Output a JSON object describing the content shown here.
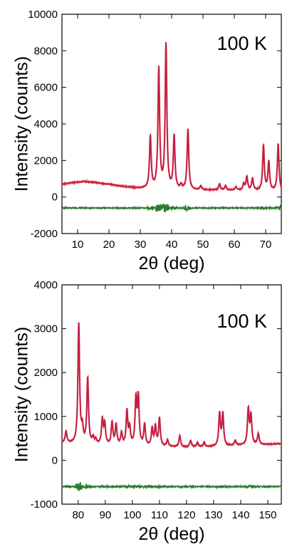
{
  "colors": {
    "observed": "#d91a2a",
    "calculated": "#3a36c9",
    "difference": "#2a7a2a",
    "axis": "#000000"
  },
  "chart_data": [
    {
      "type": "line",
      "annotation": "100 K",
      "xlabel": "2θ (deg)",
      "ylabel": "Intensity (counts)",
      "xlim": [
        5,
        75
      ],
      "ylim": [
        -2000,
        10000
      ],
      "xticks": [
        10,
        20,
        30,
        40,
        50,
        60,
        70
      ],
      "yticks": [
        -2000,
        0,
        2000,
        4000,
        6000,
        8000,
        10000
      ],
      "xtick_labels": [
        "10",
        "20",
        "30",
        "40",
        "50",
        "60",
        "70"
      ],
      "ytick_labels": [
        "-2000",
        "0",
        "2000",
        "4000",
        "6000",
        "8000",
        "10000"
      ],
      "background": [
        [
          5,
          700
        ],
        [
          8,
          780
        ],
        [
          12,
          850
        ],
        [
          16,
          780
        ],
        [
          20,
          700
        ],
        [
          25,
          560
        ],
        [
          30,
          470
        ],
        [
          35,
          430
        ],
        [
          40,
          400
        ],
        [
          50,
          380
        ],
        [
          60,
          370
        ],
        [
          70,
          330
        ],
        [
          75,
          300
        ]
      ],
      "peaks": [
        {
          "x": 33.2,
          "y": 3300
        },
        {
          "x": 35.9,
          "y": 7000
        },
        {
          "x": 38.2,
          "y": 8300
        },
        {
          "x": 40.8,
          "y": 3300
        },
        {
          "x": 43.0,
          "y": 600
        },
        {
          "x": 45.2,
          "y": 3700
        },
        {
          "x": 49.3,
          "y": 600
        },
        {
          "x": 55.3,
          "y": 700
        },
        {
          "x": 57.2,
          "y": 600
        },
        {
          "x": 60.5,
          "y": 550
        },
        {
          "x": 63.0,
          "y": 700
        },
        {
          "x": 64.0,
          "y": 1100
        },
        {
          "x": 65.8,
          "y": 1000
        },
        {
          "x": 69.3,
          "y": 2800
        },
        {
          "x": 71.0,
          "y": 1900
        },
        {
          "x": 74.0,
          "y": 2900
        }
      ],
      "difference_offset": -600,
      "series": [
        {
          "name": "",
          "role": "observed"
        },
        {
          "name": "",
          "role": "calculated"
        },
        {
          "name": "",
          "role": "difference"
        }
      ]
    },
    {
      "type": "line",
      "annotation": "100 K",
      "xlabel": "2θ (deg)",
      "ylabel": "Intensity (counts)",
      "xlim": [
        74,
        155
      ],
      "ylim": [
        -1000,
        4000
      ],
      "xticks": [
        80,
        90,
        100,
        110,
        120,
        130,
        140,
        150
      ],
      "yticks": [
        -1000,
        0,
        1000,
        2000,
        3000,
        4000
      ],
      "xtick_labels": [
        "80",
        "90",
        "100",
        "110",
        "120",
        "130",
        "140",
        "150"
      ],
      "ytick_labels": [
        "-1000",
        "0",
        "1000",
        "2000",
        "3000",
        "4000"
      ],
      "background": [
        [
          74,
          400
        ],
        [
          80,
          370
        ],
        [
          90,
          340
        ],
        [
          100,
          320
        ],
        [
          110,
          310
        ],
        [
          120,
          300
        ],
        [
          130,
          310
        ],
        [
          140,
          340
        ],
        [
          150,
          360
        ],
        [
          155,
          380
        ]
      ],
      "peaks": [
        {
          "x": 75.5,
          "y": 650
        },
        {
          "x": 80.2,
          "y": 3100
        },
        {
          "x": 81.5,
          "y": 700
        },
        {
          "x": 83.5,
          "y": 1850
        },
        {
          "x": 85.5,
          "y": 500
        },
        {
          "x": 86.5,
          "y": 450
        },
        {
          "x": 88.9,
          "y": 900
        },
        {
          "x": 89.8,
          "y": 800
        },
        {
          "x": 92.5,
          "y": 850
        },
        {
          "x": 94.0,
          "y": 800
        },
        {
          "x": 96.0,
          "y": 600
        },
        {
          "x": 98.0,
          "y": 1100
        },
        {
          "x": 99.0,
          "y": 700
        },
        {
          "x": 101.3,
          "y": 1350
        },
        {
          "x": 102.2,
          "y": 1400
        },
        {
          "x": 104.5,
          "y": 800
        },
        {
          "x": 107.3,
          "y": 700
        },
        {
          "x": 108.5,
          "y": 750
        },
        {
          "x": 110.0,
          "y": 950
        },
        {
          "x": 113.0,
          "y": 450
        },
        {
          "x": 117.5,
          "y": 550
        },
        {
          "x": 121.5,
          "y": 450
        },
        {
          "x": 124.0,
          "y": 400
        },
        {
          "x": 126.5,
          "y": 400
        },
        {
          "x": 132.2,
          "y": 1050
        },
        {
          "x": 133.4,
          "y": 1050
        },
        {
          "x": 138.0,
          "y": 450
        },
        {
          "x": 142.8,
          "y": 1150
        },
        {
          "x": 143.8,
          "y": 1000
        },
        {
          "x": 146.5,
          "y": 600
        }
      ],
      "difference_offset": -600,
      "series": [
        {
          "name": "",
          "role": "observed"
        },
        {
          "name": "",
          "role": "calculated"
        },
        {
          "name": "",
          "role": "difference"
        }
      ]
    }
  ]
}
